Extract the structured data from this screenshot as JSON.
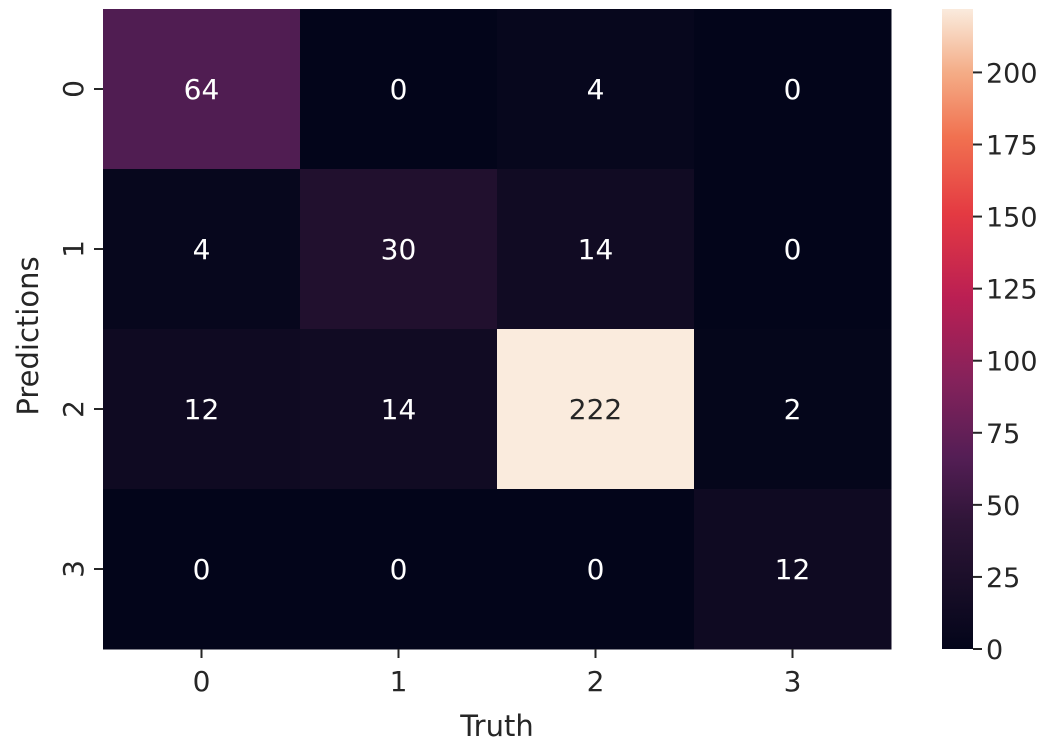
{
  "chart_data": {
    "type": "heatmap",
    "title": "",
    "xlabel": "Truth",
    "ylabel": "Predictions",
    "x_categories": [
      "0",
      "1",
      "2",
      "3"
    ],
    "y_categories": [
      "0",
      "1",
      "2",
      "3"
    ],
    "matrix": [
      [
        64,
        0,
        4,
        0
      ],
      [
        4,
        30,
        14,
        0
      ],
      [
        12,
        14,
        222,
        2
      ],
      [
        0,
        0,
        0,
        12
      ]
    ],
    "colorbar": {
      "min": 0,
      "max": 222,
      "ticks": [
        0,
        25,
        50,
        75,
        100,
        125,
        150,
        175,
        200
      ],
      "colormap": "rocket"
    },
    "annotations": "cell values shown"
  }
}
